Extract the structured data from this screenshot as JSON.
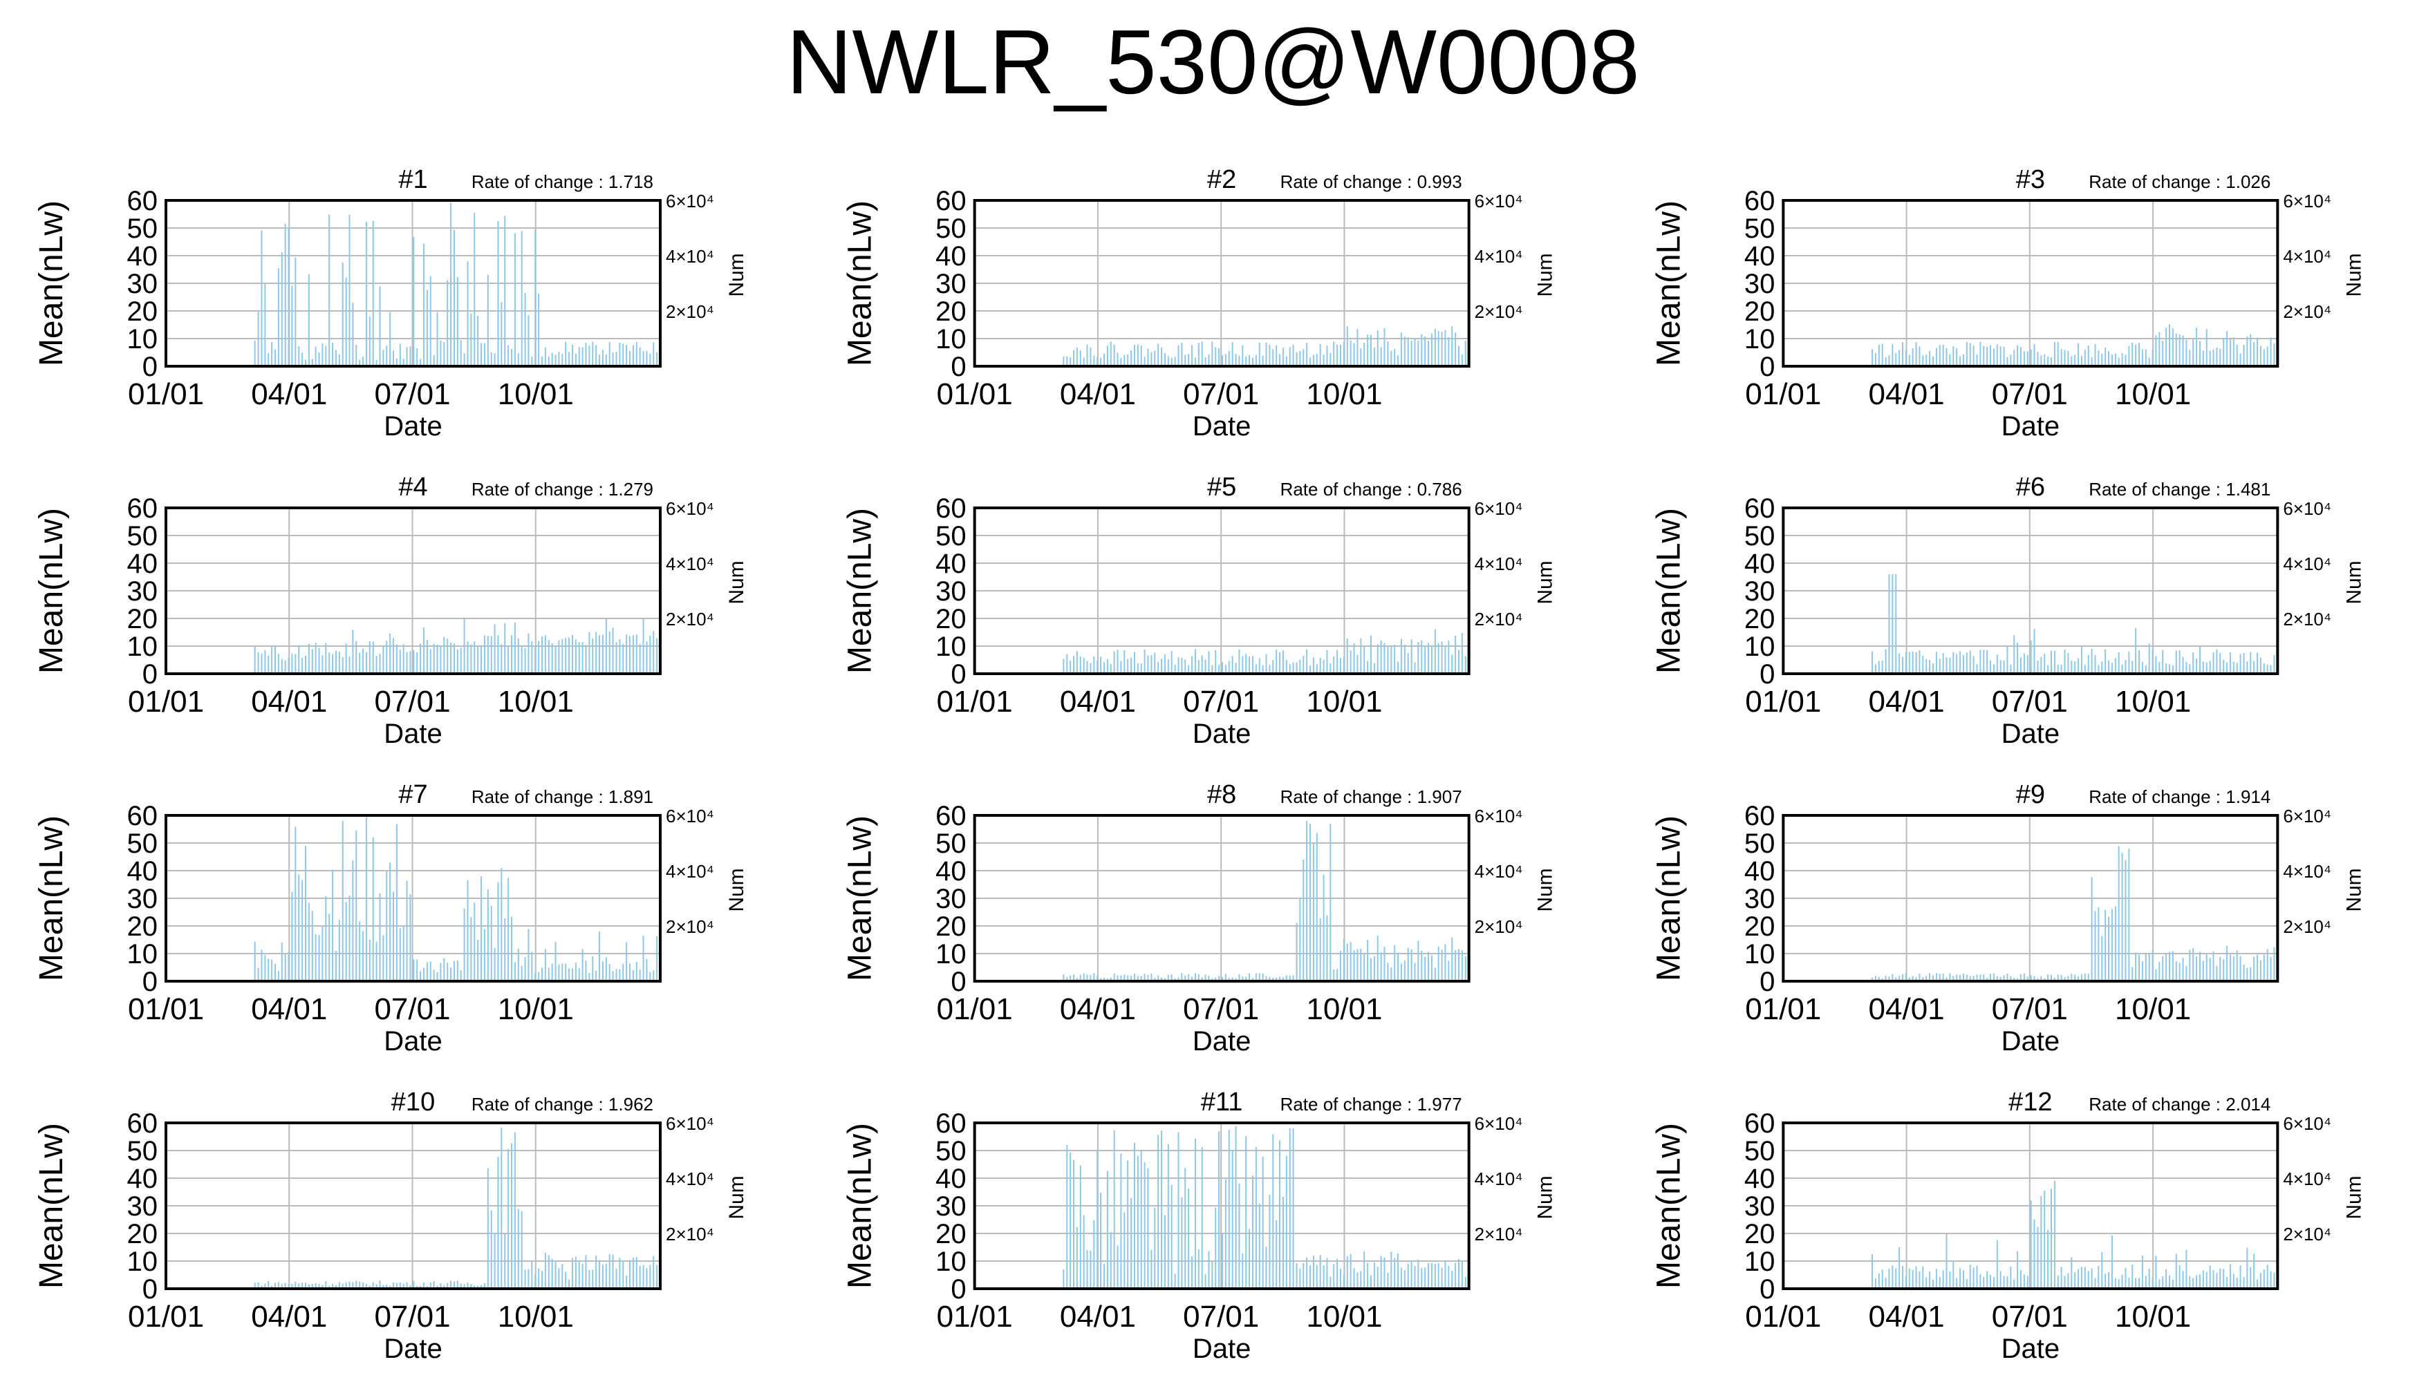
{
  "page": {
    "title": "NWLR_530@W0008"
  },
  "style": {
    "bar_color": "#8cc8e8",
    "grid_color": "#bbbbbb",
    "axis_color": "#000000"
  },
  "chart_data": [
    {
      "type": "bar",
      "title": "#1",
      "rate_label": "Rate of change : 1.718",
      "xlabel": "Date",
      "ylabel": "Mean(nLw)",
      "y2label": "Num",
      "xticks": [
        "01/01",
        "04/01",
        "07/01",
        "10/01"
      ],
      "yticks": [
        "0",
        "10",
        "20",
        "30",
        "40",
        "50",
        "60"
      ],
      "y2ticks": [
        "2×10⁴",
        "4×10⁴",
        "6×10⁴"
      ],
      "ylim": [
        0,
        60
      ],
      "grid": true,
      "profile": "high",
      "seed": 11
    },
    {
      "type": "bar",
      "title": "#2",
      "rate_label": "Rate of change : 0.993",
      "xlabel": "Date",
      "ylabel": "Mean(nLw)",
      "y2label": "Num",
      "xticks": [
        "01/01",
        "04/01",
        "07/01",
        "10/01"
      ],
      "yticks": [
        "0",
        "10",
        "20",
        "30",
        "40",
        "50",
        "60"
      ],
      "y2ticks": [
        "2×10⁴",
        "4×10⁴",
        "6×10⁴"
      ],
      "ylim": [
        0,
        60
      ],
      "grid": true,
      "profile": "low",
      "seed": 22
    },
    {
      "type": "bar",
      "title": "#3",
      "rate_label": "Rate of change : 1.026",
      "xlabel": "Date",
      "ylabel": "Mean(nLw)",
      "y2label": "Num",
      "xticks": [
        "01/01",
        "04/01",
        "07/01",
        "10/01"
      ],
      "yticks": [
        "0",
        "10",
        "20",
        "30",
        "40",
        "50",
        "60"
      ],
      "y2ticks": [
        "2×10⁴",
        "4×10⁴",
        "6×10⁴"
      ],
      "ylim": [
        0,
        60
      ],
      "grid": true,
      "profile": "low",
      "seed": 33
    },
    {
      "type": "bar",
      "title": "#4",
      "rate_label": "Rate of change : 1.279",
      "xlabel": "Date",
      "ylabel": "Mean(nLw)",
      "y2label": "Num",
      "xticks": [
        "01/01",
        "04/01",
        "07/01",
        "10/01"
      ],
      "yticks": [
        "0",
        "10",
        "20",
        "30",
        "40",
        "50",
        "60"
      ],
      "y2ticks": [
        "2×10⁴",
        "4×10⁴",
        "6×10⁴"
      ],
      "ylim": [
        0,
        60
      ],
      "grid": true,
      "profile": "rising",
      "seed": 44
    },
    {
      "type": "bar",
      "title": "#5",
      "rate_label": "Rate of change : 0.786",
      "xlabel": "Date",
      "ylabel": "Mean(nLw)",
      "y2label": "Num",
      "xticks": [
        "01/01",
        "04/01",
        "07/01",
        "10/01"
      ],
      "yticks": [
        "0",
        "10",
        "20",
        "30",
        "40",
        "50",
        "60"
      ],
      "y2ticks": [
        "2×10⁴",
        "4×10⁴",
        "6×10⁴"
      ],
      "ylim": [
        0,
        60
      ],
      "grid": true,
      "profile": "low",
      "seed": 55
    },
    {
      "type": "bar",
      "title": "#6",
      "rate_label": "Rate of change : 1.481",
      "xlabel": "Date",
      "ylabel": "Mean(nLw)",
      "y2label": "Num",
      "xticks": [
        "01/01",
        "04/01",
        "07/01",
        "10/01"
      ],
      "yticks": [
        "0",
        "10",
        "20",
        "30",
        "40",
        "50",
        "60"
      ],
      "y2ticks": [
        "2×10⁴",
        "4×10⁴",
        "6×10⁴"
      ],
      "ylim": [
        0,
        60
      ],
      "grid": true,
      "profile": "low_spike",
      "seed": 66
    },
    {
      "type": "bar",
      "title": "#7",
      "rate_label": "Rate of change : 1.891",
      "xlabel": "Date",
      "ylabel": "Mean(nLw)",
      "y2label": "Num",
      "xticks": [
        "01/01",
        "04/01",
        "07/01",
        "10/01"
      ],
      "yticks": [
        "0",
        "10",
        "20",
        "30",
        "40",
        "50",
        "60"
      ],
      "y2ticks": [
        "2×10⁴",
        "4×10⁴",
        "6×10⁴"
      ],
      "ylim": [
        0,
        60
      ],
      "grid": true,
      "profile": "mid_high",
      "seed": 77
    },
    {
      "type": "bar",
      "title": "#8",
      "rate_label": "Rate of change : 1.907",
      "xlabel": "Date",
      "ylabel": "Mean(nLw)",
      "y2label": "Num",
      "xticks": [
        "01/01",
        "04/01",
        "07/01",
        "10/01"
      ],
      "yticks": [
        "0",
        "10",
        "20",
        "30",
        "40",
        "50",
        "60"
      ],
      "y2ticks": [
        "2×10⁴",
        "4×10⁴",
        "6×10⁴"
      ],
      "ylim": [
        0,
        60
      ],
      "grid": true,
      "profile": "bimodal_a",
      "seed": 88
    },
    {
      "type": "bar",
      "title": "#9",
      "rate_label": "Rate of change : 1.914",
      "xlabel": "Date",
      "ylabel": "Mean(nLw)",
      "y2label": "Num",
      "xticks": [
        "01/01",
        "04/01",
        "07/01",
        "10/01"
      ],
      "yticks": [
        "0",
        "10",
        "20",
        "30",
        "40",
        "50",
        "60"
      ],
      "y2ticks": [
        "2×10⁴",
        "4×10⁴",
        "6×10⁴"
      ],
      "ylim": [
        0,
        60
      ],
      "grid": true,
      "profile": "bimodal_b",
      "seed": 99
    },
    {
      "type": "bar",
      "title": "#10",
      "rate_label": "Rate of change : 1.962",
      "xlabel": "Date",
      "ylabel": "Mean(nLw)",
      "y2label": "Num",
      "xticks": [
        "01/01",
        "04/01",
        "07/01",
        "10/01"
      ],
      "yticks": [
        "0",
        "10",
        "20",
        "30",
        "40",
        "50",
        "60"
      ],
      "y2ticks": [
        "2×10⁴",
        "4×10⁴",
        "6×10⁴"
      ],
      "ylim": [
        0,
        60
      ],
      "grid": true,
      "profile": "bimodal_c",
      "seed": 110
    },
    {
      "type": "bar",
      "title": "#11",
      "rate_label": "Rate of change : 1.977",
      "xlabel": "Date",
      "ylabel": "Mean(nLw)",
      "y2label": "Num",
      "xticks": [
        "01/01",
        "04/01",
        "07/01",
        "10/01"
      ],
      "yticks": [
        "0",
        "10",
        "20",
        "30",
        "40",
        "50",
        "60"
      ],
      "y2ticks": [
        "2×10⁴",
        "4×10⁴",
        "6×10⁴"
      ],
      "ylim": [
        0,
        60
      ],
      "grid": true,
      "profile": "dense_high",
      "seed": 121
    },
    {
      "type": "bar",
      "title": "#12",
      "rate_label": "Rate of change : 2.014",
      "xlabel": "Date",
      "ylabel": "Mean(nLw)",
      "y2label": "Num",
      "xticks": [
        "01/01",
        "04/01",
        "07/01",
        "10/01"
      ],
      "yticks": [
        "0",
        "10",
        "20",
        "30",
        "40",
        "50",
        "60"
      ],
      "y2ticks": [
        "2×10⁴",
        "4×10⁴",
        "6×10⁴"
      ],
      "ylim": [
        0,
        60
      ],
      "grid": true,
      "profile": "low_mid_spike",
      "seed": 132
    }
  ]
}
